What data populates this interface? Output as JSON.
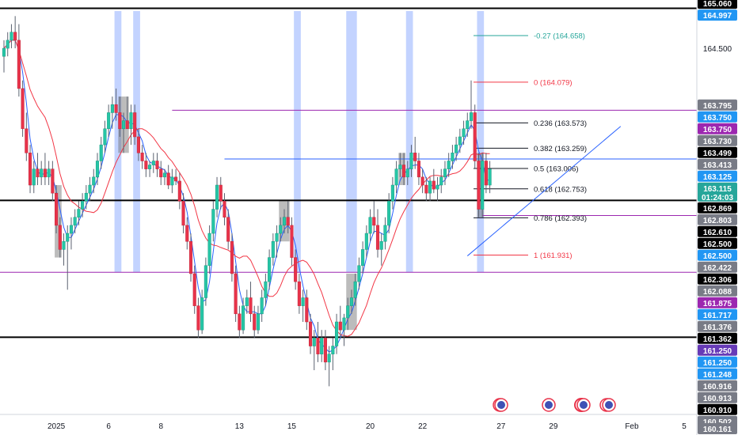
{
  "colors": {
    "bull": "#26c6a6",
    "bear": "#e8334a",
    "wick": "#5b6270",
    "ma_fast": "#2962ff",
    "ma_slow": "#f23645",
    "level_black": "#000000",
    "level_purple": "#9c27b0",
    "level_blue": "#2962ff",
    "highlight_blue": "#2962ff",
    "highlight_gray": "#6b6b6b",
    "fib_line": "#131722"
  },
  "chart_data": {
    "type": "candlestick",
    "y_axis": {
      "min": 159.95,
      "max": 165.1,
      "side": "right",
      "grid": false
    },
    "x_axis": {
      "ticks": [
        {
          "bar": 14,
          "label": "2025"
        },
        {
          "bar": 28,
          "label": "6"
        },
        {
          "bar": 42,
          "label": "8"
        },
        {
          "bar": 63,
          "label": "13"
        },
        {
          "bar": 77,
          "label": "15"
        },
        {
          "bar": 98,
          "label": "20"
        },
        {
          "bar": 112,
          "label": "22"
        },
        {
          "bar": 133,
          "label": "27"
        },
        {
          "bar": 147,
          "label": "29"
        },
        {
          "bar": 168,
          "label": "Feb"
        },
        {
          "bar": 182,
          "label": "5"
        }
      ]
    },
    "y_ticks": [
      164.5
    ],
    "price_labels": [
      {
        "value": 165.06,
        "text": "165.060",
        "style": "dark"
      },
      {
        "value": 164.997,
        "text": "164.997",
        "style": "blue"
      },
      {
        "value": 163.795,
        "text": "163.795",
        "style": "gray"
      },
      {
        "value": 163.75,
        "text": "163.750",
        "style": "blue"
      },
      {
        "value": 163.75,
        "text": "163.750",
        "style": "purple"
      },
      {
        "value": 163.73,
        "text": "163.730",
        "style": "gray"
      },
      {
        "value": 163.499,
        "text": "163.499",
        "style": "dark"
      },
      {
        "value": 163.413,
        "text": "163.413",
        "style": "gray"
      },
      {
        "value": 163.125,
        "text": "163.125",
        "style": "blue"
      },
      {
        "value": 163.115,
        "text": "163.115",
        "style": "teal",
        "sub": "01:24:03"
      },
      {
        "value": 162.869,
        "text": "162.869",
        "style": "dark"
      },
      {
        "value": 162.803,
        "text": "162.803",
        "style": "gray"
      },
      {
        "value": 162.61,
        "text": "162.610",
        "style": "dark"
      },
      {
        "value": 162.5,
        "text": "162.500",
        "style": "dark"
      },
      {
        "value": 162.5,
        "text": "162.500",
        "style": "blue"
      },
      {
        "value": 162.422,
        "text": "162.422",
        "style": "gray"
      },
      {
        "value": 162.306,
        "text": "162.306",
        "style": "dark"
      },
      {
        "value": 162.088,
        "text": "162.088",
        "style": "gray"
      },
      {
        "value": 161.875,
        "text": "161.875",
        "style": "purple"
      },
      {
        "value": 161.717,
        "text": "161.717",
        "style": "blue"
      },
      {
        "value": 161.376,
        "text": "161.376",
        "style": "gray"
      },
      {
        "value": 161.362,
        "text": "161.362",
        "style": "dark"
      },
      {
        "value": 161.25,
        "text": "161.250",
        "style": "purple2"
      },
      {
        "value": 161.25,
        "text": "161.250",
        "style": "blue"
      },
      {
        "value": 161.248,
        "text": "161.248",
        "style": "blue"
      },
      {
        "value": 160.916,
        "text": "160.916",
        "style": "gray"
      },
      {
        "value": 160.913,
        "text": "160.913",
        "style": "gray"
      },
      {
        "value": 160.91,
        "text": "160.910",
        "style": "dark"
      },
      {
        "value": 160.502,
        "text": "160.502",
        "style": "gray"
      },
      {
        "value": 160.161,
        "text": "160.161",
        "style": "gray"
      }
    ],
    "horizontal_levels": [
      {
        "value": 164.997,
        "color": "level_black",
        "width": 2
      },
      {
        "value": 162.61,
        "color": "level_black",
        "width": 2
      },
      {
        "value": 160.91,
        "color": "level_black",
        "width": 2
      },
      {
        "value": 161.717,
        "color": "level_purple",
        "width": 1
      },
      {
        "value": 162.422,
        "color": "level_purple",
        "width": 1,
        "from_bar": 128
      },
      {
        "value": 163.73,
        "color": "level_purple",
        "width": 1,
        "from_bar": 45
      },
      {
        "value": 163.125,
        "color": "level_blue",
        "width": 1,
        "from_bar": 59
      }
    ],
    "fibonacci": [
      {
        "ratio": "-0.27",
        "value": 164.658,
        "label": "-0.27 (164.658)",
        "color": "#26a69a"
      },
      {
        "ratio": "0",
        "value": 164.079,
        "label": "0 (164.079)",
        "color": "#f23645"
      },
      {
        "ratio": "0.236",
        "value": 163.573,
        "label": "0.236 (163.573)",
        "color": "#131722"
      },
      {
        "ratio": "0.382",
        "value": 163.259,
        "label": "0.382 (163.259)",
        "color": "#131722"
      },
      {
        "ratio": "0.5",
        "value": 163.006,
        "label": "0.5 (163.006)",
        "color": "#131722"
      },
      {
        "ratio": "0.618",
        "value": 162.753,
        "label": "0.618 (162.753)",
        "color": "#131722"
      },
      {
        "ratio": "0.786",
        "value": 162.393,
        "label": "0.786 (162.393)",
        "color": "#131722"
      },
      {
        "ratio": "1",
        "value": 161.931,
        "label": "1 (161.931)",
        "color": "#f23645"
      }
    ],
    "candles": [
      [
        164.4,
        164.6,
        164.2,
        164.5
      ],
      [
        164.5,
        164.7,
        164.4,
        164.6
      ],
      [
        164.6,
        164.8,
        164.5,
        164.7
      ],
      [
        164.7,
        164.9,
        164.5,
        164.6
      ],
      [
        164.6,
        164.8,
        163.9,
        164.0
      ],
      [
        164.0,
        164.1,
        163.4,
        163.5
      ],
      [
        163.5,
        163.7,
        163.1,
        163.2
      ],
      [
        163.2,
        163.3,
        162.7,
        162.8
      ],
      [
        162.8,
        163.1,
        162.7,
        163.0
      ],
      [
        163.0,
        163.2,
        162.8,
        162.9
      ],
      [
        162.9,
        163.1,
        162.8,
        163.0
      ],
      [
        163.0,
        163.2,
        162.8,
        162.9
      ],
      [
        162.9,
        163.1,
        162.8,
        163.0
      ],
      [
        163.0,
        163.1,
        162.6,
        162.7
      ],
      [
        162.7,
        162.8,
        162.2,
        162.3
      ],
      [
        162.3,
        162.4,
        161.9,
        162.0
      ],
      [
        162.0,
        162.2,
        161.8,
        162.1
      ],
      [
        162.1,
        162.3,
        161.5,
        162.2
      ],
      [
        162.2,
        162.4,
        162.0,
        162.3
      ],
      [
        162.3,
        162.5,
        162.2,
        162.4
      ],
      [
        162.4,
        162.6,
        162.3,
        162.5
      ],
      [
        162.5,
        162.7,
        162.4,
        162.6
      ],
      [
        162.6,
        162.8,
        162.5,
        162.7
      ],
      [
        162.7,
        162.9,
        162.6,
        162.8
      ],
      [
        162.8,
        163.0,
        162.7,
        162.9
      ],
      [
        162.9,
        163.2,
        162.8,
        163.1
      ],
      [
        163.1,
        163.4,
        163.0,
        163.3
      ],
      [
        163.3,
        163.6,
        163.2,
        163.5
      ],
      [
        163.5,
        163.8,
        163.4,
        163.7
      ],
      [
        163.7,
        163.9,
        163.5,
        163.8
      ],
      [
        163.8,
        164.0,
        163.6,
        163.7
      ],
      [
        163.7,
        163.9,
        163.4,
        163.5
      ],
      [
        163.5,
        163.7,
        163.2,
        163.6
      ],
      [
        163.6,
        163.9,
        163.5,
        163.5
      ],
      [
        163.5,
        163.8,
        163.3,
        163.7
      ],
      [
        163.7,
        163.8,
        163.3,
        163.4
      ],
      [
        163.4,
        163.5,
        163.1,
        163.2
      ],
      [
        163.2,
        163.3,
        163.0,
        163.1
      ],
      [
        163.1,
        163.2,
        162.9,
        163.0
      ],
      [
        163.0,
        163.1,
        162.9,
        163.05
      ],
      [
        163.05,
        163.2,
        162.95,
        163.1
      ],
      [
        163.1,
        163.2,
        162.9,
        163.0
      ],
      [
        163.0,
        163.1,
        162.8,
        162.9
      ],
      [
        162.9,
        163.0,
        162.8,
        162.95
      ],
      [
        162.95,
        163.05,
        162.75,
        162.8
      ],
      [
        162.8,
        163.0,
        162.7,
        162.9
      ],
      [
        162.9,
        163.0,
        162.8,
        162.85
      ],
      [
        162.85,
        162.95,
        162.5,
        162.6
      ],
      [
        162.6,
        162.7,
        162.2,
        162.3
      ],
      [
        162.3,
        162.4,
        162.0,
        162.1
      ],
      [
        162.1,
        162.2,
        161.6,
        161.7
      ],
      [
        161.7,
        161.8,
        161.2,
        161.3
      ],
      [
        161.3,
        161.4,
        160.9,
        161.0
      ],
      [
        161.0,
        161.5,
        160.95,
        161.4
      ],
      [
        161.4,
        161.9,
        161.3,
        161.8
      ],
      [
        161.8,
        162.3,
        161.7,
        162.2
      ],
      [
        162.2,
        162.6,
        162.1,
        162.5
      ],
      [
        162.5,
        162.9,
        162.4,
        162.8
      ],
      [
        162.8,
        162.9,
        162.5,
        162.6
      ],
      [
        162.6,
        162.7,
        162.3,
        162.4
      ],
      [
        162.4,
        162.5,
        162.0,
        162.1
      ],
      [
        162.1,
        162.2,
        161.6,
        161.7
      ],
      [
        161.7,
        161.8,
        161.1,
        161.2
      ],
      [
        161.2,
        161.3,
        160.9,
        161.0
      ],
      [
        161.0,
        161.4,
        160.95,
        161.3
      ],
      [
        161.3,
        161.5,
        161.2,
        161.4
      ],
      [
        161.4,
        161.6,
        161.1,
        161.2
      ],
      [
        161.2,
        161.3,
        160.9,
        161.0
      ],
      [
        161.0,
        161.3,
        160.95,
        161.2
      ],
      [
        161.2,
        161.5,
        161.1,
        161.4
      ],
      [
        161.4,
        161.7,
        161.3,
        161.6
      ],
      [
        161.6,
        162.0,
        161.5,
        161.9
      ],
      [
        161.9,
        162.2,
        161.8,
        162.1
      ],
      [
        162.1,
        162.3,
        161.9,
        162.2
      ],
      [
        162.2,
        162.4,
        162.1,
        162.3
      ],
      [
        162.3,
        162.5,
        162.2,
        162.4
      ],
      [
        162.4,
        162.6,
        162.2,
        162.3
      ],
      [
        162.3,
        162.4,
        161.8,
        161.9
      ],
      [
        161.9,
        162.0,
        161.5,
        161.6
      ],
      [
        161.6,
        161.7,
        161.2,
        161.3
      ],
      [
        161.3,
        161.5,
        161.1,
        161.4
      ],
      [
        161.4,
        161.5,
        161.0,
        161.1
      ],
      [
        161.1,
        161.2,
        160.7,
        160.8
      ],
      [
        160.8,
        161.0,
        160.5,
        160.9
      ],
      [
        160.9,
        161.1,
        160.6,
        160.7
      ],
      [
        160.7,
        161.0,
        160.6,
        160.9
      ],
      [
        160.9,
        161.0,
        160.5,
        160.6
      ],
      [
        160.6,
        160.8,
        160.3,
        160.7
      ],
      [
        160.7,
        160.9,
        160.5,
        160.8
      ],
      [
        160.8,
        161.2,
        160.7,
        161.1
      ],
      [
        161.1,
        161.3,
        160.9,
        161.0
      ],
      [
        161.0,
        161.2,
        160.8,
        161.15
      ],
      [
        161.15,
        161.4,
        161.0,
        161.3
      ],
      [
        161.3,
        161.5,
        161.2,
        161.4
      ],
      [
        161.4,
        161.7,
        161.3,
        161.6
      ],
      [
        161.6,
        161.9,
        161.5,
        161.8
      ],
      [
        161.8,
        162.1,
        161.7,
        162.0
      ],
      [
        162.0,
        162.3,
        161.9,
        162.2
      ],
      [
        162.2,
        162.5,
        162.1,
        162.4
      ],
      [
        162.4,
        162.6,
        162.2,
        162.3
      ],
      [
        162.3,
        162.5,
        161.9,
        162.0
      ],
      [
        162.0,
        162.2,
        161.8,
        162.1
      ],
      [
        162.1,
        162.4,
        162.0,
        162.3
      ],
      [
        162.3,
        162.7,
        162.2,
        162.6
      ],
      [
        162.6,
        162.9,
        162.5,
        162.8
      ],
      [
        162.8,
        163.1,
        162.7,
        163.0
      ],
      [
        163.0,
        163.2,
        162.9,
        163.05
      ],
      [
        163.05,
        163.2,
        162.8,
        162.9
      ],
      [
        162.9,
        163.1,
        162.8,
        163.0
      ],
      [
        163.0,
        163.3,
        162.9,
        163.2
      ],
      [
        163.2,
        163.4,
        163.0,
        163.1
      ],
      [
        163.1,
        163.2,
        162.8,
        162.9
      ],
      [
        162.9,
        163.0,
        162.7,
        162.8
      ],
      [
        162.8,
        162.9,
        162.6,
        162.7
      ],
      [
        162.7,
        162.9,
        162.6,
        162.85
      ],
      [
        162.85,
        163.0,
        162.7,
        162.75
      ],
      [
        162.75,
        162.9,
        162.6,
        162.8
      ],
      [
        162.8,
        163.0,
        162.7,
        162.9
      ],
      [
        162.9,
        163.1,
        162.8,
        163.0
      ],
      [
        163.0,
        163.2,
        162.9,
        163.1
      ],
      [
        163.1,
        163.3,
        163.0,
        163.2
      ],
      [
        163.2,
        163.4,
        163.1,
        163.3
      ],
      [
        163.3,
        163.5,
        163.2,
        163.4
      ],
      [
        163.4,
        163.6,
        163.3,
        163.5
      ],
      [
        163.5,
        163.7,
        163.4,
        163.6
      ],
      [
        163.6,
        164.1,
        163.5,
        163.7
      ],
      [
        163.7,
        163.8,
        163.0,
        163.1
      ],
      [
        163.1,
        163.2,
        162.4,
        162.5
      ],
      [
        162.5,
        163.2,
        162.4,
        163.1
      ],
      [
        163.1,
        163.2,
        162.7,
        162.8
      ],
      [
        162.8,
        163.1,
        162.7,
        163.0
      ]
    ],
    "blue_highlights": [
      [
        30,
        31
      ],
      [
        35,
        36
      ],
      [
        78,
        79
      ],
      [
        92,
        94
      ],
      [
        108,
        109
      ],
      [
        127,
        128
      ]
    ],
    "gray_highlights": [
      [
        14,
        15
      ],
      [
        31,
        33
      ],
      [
        74,
        76
      ],
      [
        92,
        94
      ],
      [
        106,
        107
      ],
      [
        127,
        128
      ]
    ],
    "trendline": {
      "from_bar": 124,
      "from_value": 161.92,
      "to_bar": 165,
      "to_value": 163.53
    },
    "bottom_icons": [
      "calendar-event-icon",
      "calendar-event-icon",
      "calendar-event-icon",
      "flag-jp-icon",
      "calendar-event-icon",
      "calendar-event-icon",
      "calendar-event-icon"
    ]
  }
}
